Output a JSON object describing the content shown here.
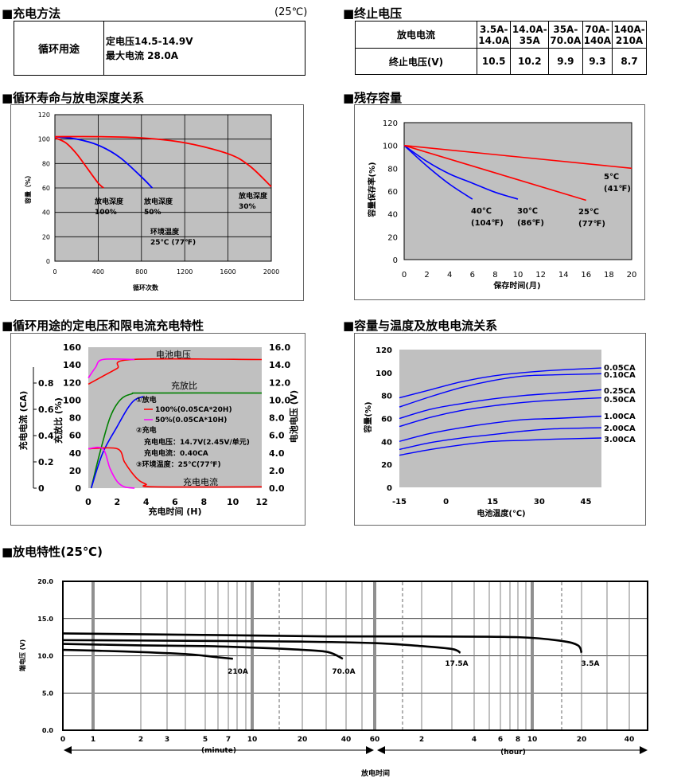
{
  "charging": {
    "title": "■充电方法",
    "unit": "(25℃)",
    "label": "循环用途",
    "line1": "定电压14.5-14.9V",
    "line2": "最大电流 28.0A"
  },
  "cutoff": {
    "title": "■终止电压",
    "row1_label": "放电电流",
    "row2_label": "终止电压(V)",
    "currents": [
      "3.5A-\n14.0A",
      "14.0A-\n35A",
      "35A-\n70.0A",
      "70A-\n140A",
      "140A-\n210A"
    ],
    "voltages": [
      "10.5",
      "10.2",
      "9.9",
      "9.3",
      "8.7"
    ]
  },
  "cycle_life": {
    "title": "■循环寿命与放电深度关系",
    "chart_data": {
      "type": "line",
      "xlabel": "循环次数",
      "ylabel": "容量（%）",
      "xlim": [
        0,
        2000
      ],
      "ylim": [
        0,
        120
      ],
      "xticks": [
        "0",
        "400",
        "800",
        "1200",
        "1600",
        "2000"
      ],
      "yticks": [
        "0",
        "20",
        "40",
        "60",
        "80",
        "100",
        "120"
      ],
      "grid": true,
      "series": [
        {
          "name": "放电深度 100%",
          "color": "#ff0000",
          "x": [
            0,
            100,
            200,
            300,
            400,
            450
          ],
          "y": [
            101,
            97,
            88,
            76,
            64,
            60
          ]
        },
        {
          "name": "放电深度 50%",
          "color": "#0000ff",
          "x": [
            0,
            200,
            400,
            600,
            800,
            900
          ],
          "y": [
            102,
            100,
            95,
            85,
            69,
            60
          ]
        },
        {
          "name": "放电深度 30%",
          "color": "#ff0000",
          "x": [
            0,
            400,
            800,
            1200,
            1600,
            1800,
            2000
          ],
          "y": [
            102,
            102,
            101,
            97,
            88,
            78,
            61
          ]
        }
      ],
      "annotations": {
        "d100": [
          "放电深度",
          "100%"
        ],
        "d50": [
          "放电深度",
          "50%"
        ],
        "d30": [
          "放电深度",
          "30%"
        ],
        "temp": [
          "环境温度",
          "25℃ (77℉)"
        ]
      }
    }
  },
  "residual": {
    "title": "■残存容量",
    "chart_data": {
      "type": "line",
      "xlabel": "保存时间(月)",
      "ylabel": "容量保存率(%)",
      "xlim": [
        0,
        20
      ],
      "ylim": [
        0,
        120
      ],
      "xticks": [
        "0",
        "2",
        "4",
        "6",
        "8",
        "10",
        "12",
        "14",
        "16",
        "18",
        "20"
      ],
      "yticks": [
        "0",
        "20",
        "40",
        "60",
        "80",
        "100",
        "120"
      ],
      "series": [
        {
          "name": "40℃ (104℉)",
          "color": "#0000ff",
          "x": [
            0,
            2,
            4,
            6
          ],
          "y": [
            100,
            82,
            66,
            53
          ]
        },
        {
          "name": "30℃ (86℉)",
          "color": "#0000ff",
          "x": [
            0,
            2,
            4,
            6,
            8,
            10
          ],
          "y": [
            100,
            86,
            75,
            67,
            59,
            53
          ]
        },
        {
          "name": "25℃ (77℉)",
          "color": "#ff0000",
          "x": [
            0,
            16
          ],
          "y": [
            100,
            52
          ]
        },
        {
          "name": "5℃ (41℉)",
          "color": "#ff0000",
          "x": [
            0,
            20
          ],
          "y": [
            100,
            80
          ]
        }
      ],
      "labels": {
        "t40": [
          "40℃",
          "(104℉)"
        ],
        "t30": [
          "30℃",
          "(86℉)"
        ],
        "t25": [
          "25℃",
          "(77℉)"
        ],
        "t5": [
          "5℃",
          "(41℉)"
        ]
      }
    }
  },
  "charge_char": {
    "title": "■循环用途的定电压和限电流充电特性",
    "chart_data": {
      "type": "line",
      "xlabel": "充电时间 (H)",
      "ylabel_left1": "充电电流 (CA)",
      "ylabel_left2": "充放比 (%)",
      "ylabel_right": "电池电压 (V)",
      "xlim": [
        0,
        12
      ],
      "ylim_pct": [
        0,
        160
      ],
      "ylim_ca": [
        0,
        0.8
      ],
      "ylim_v": [
        0,
        16
      ],
      "xticks": [
        "0",
        "2",
        "4",
        "6",
        "8",
        "10",
        "12"
      ],
      "yticks_pct": [
        "0",
        "20",
        "40",
        "60",
        "80",
        "100",
        "120",
        "140",
        "160"
      ],
      "yticks_ca": [
        "0",
        "0.2",
        "0.4",
        "0.6",
        "0.8"
      ],
      "yticks_v": [
        "0.0",
        "2.0",
        "4.0",
        "6.0",
        "8.0",
        "10.0",
        "12.0",
        "14.0",
        "16.0"
      ],
      "series": [
        {
          "name": "电池电压 100%",
          "color": "#ff0000",
          "axis": "v",
          "x": [
            0,
            1,
            2,
            3,
            12
          ],
          "y": [
            11.8,
            12.7,
            13.6,
            14.6,
            14.6
          ]
        },
        {
          "name": "电池电压 50%",
          "color": "#ff00ff",
          "axis": "v",
          "x": [
            0,
            0.5,
            1,
            3.2
          ],
          "y": [
            12.5,
            13.7,
            14.6,
            14.6
          ]
        },
        {
          "name": "充放比 100%",
          "color": "#008000",
          "axis": "pct",
          "x": [
            0.2,
            0.8,
            1.5,
            2.2,
            3.0,
            4.0,
            12
          ],
          "y": [
            0,
            40,
            80,
            100,
            107,
            108,
            108
          ]
        },
        {
          "name": "充放比 50%",
          "color": "#0000ff",
          "axis": "pct",
          "x": [
            0.2,
            1.0,
            2.0,
            2.7,
            3.2,
            3.8
          ],
          "y": [
            0,
            40,
            70,
            90,
            100,
            104
          ]
        },
        {
          "name": "充电电流 100%",
          "color": "#ff0000",
          "axis": "ca",
          "x": [
            0,
            2,
            2.5,
            3,
            3.5,
            4,
            4.5,
            12
          ],
          "y": [
            0.3,
            0.3,
            0.2,
            0.12,
            0.06,
            0.03,
            0.01,
            0.01
          ]
        },
        {
          "name": "充电电流 50%",
          "color": "#ff00ff",
          "axis": "ca",
          "x": [
            0,
            1,
            1.5,
            2,
            2.5,
            3.2
          ],
          "y": [
            0.3,
            0.3,
            0.15,
            0.05,
            0.01,
            0.0
          ]
        }
      ],
      "labels": {
        "voltage": "电池电压",
        "ratio": "充放比",
        "current": "充电电流",
        "legend_discharge": "①放电",
        "legend_100": "100%(0.05CA*20H)",
        "legend_50": "50%(0.05CA*10H)",
        "legend_charge": "②充电",
        "cv": "充电电压：14.7V(2.45V/单元)",
        "cc": "充电电流：0.40CA",
        "env": "③环境温度：25℃(77℉)"
      }
    }
  },
  "temp_cap": {
    "title": "■容量与温度及放电电流关系",
    "chart_data": {
      "type": "line",
      "xlabel": "电池温度(℃)",
      "ylabel": "容量(%)",
      "xlim": [
        -15,
        50
      ],
      "ylim": [
        0,
        120
      ],
      "xticks": [
        "-15",
        "0",
        "15",
        "30",
        "45"
      ],
      "yticks": [
        "0",
        "20",
        "40",
        "60",
        "80",
        "100",
        "120"
      ],
      "x": [
        -15,
        -5,
        5,
        15,
        25,
        35,
        50
      ],
      "series": [
        {
          "name": "0.05CA",
          "values": [
            78,
            85,
            92,
            97,
            100,
            102,
            104
          ]
        },
        {
          "name": "0.10CA",
          "values": [
            70,
            79,
            87,
            93,
            97,
            98,
            99
          ]
        },
        {
          "name": "0.25CA",
          "values": [
            60,
            68,
            73,
            77,
            80,
            82,
            85
          ]
        },
        {
          "name": "0.50CA",
          "values": [
            53,
            61,
            67,
            71,
            74,
            76,
            78
          ]
        },
        {
          "name": "1.00CA",
          "values": [
            40,
            47,
            52,
            56,
            59,
            60,
            62
          ]
        },
        {
          "name": "2.00CA",
          "values": [
            33,
            39,
            43,
            46,
            49,
            51,
            52
          ]
        },
        {
          "name": "3.00CA",
          "values": [
            28,
            33,
            37,
            40,
            41,
            42,
            43
          ]
        }
      ]
    }
  },
  "discharge": {
    "title": "■放电特性(25℃)",
    "chart_data": {
      "type": "line",
      "xlabel": "放电时间",
      "ylabel": "端电压 (V)",
      "ylim": [
        0,
        20
      ],
      "yticks": [
        "0.0",
        "5.0",
        "10.0",
        "15.0",
        "20.0"
      ],
      "minute_ticks": [
        "0",
        "1",
        "2",
        "3",
        "5",
        "7",
        "10",
        "20",
        "40",
        "60"
      ],
      "hour_ticks": [
        "2",
        "4",
        "6",
        "8",
        "10",
        "20",
        "40"
      ],
      "minute_label": "(minute)",
      "hour_label": "(hour)",
      "series": [
        {
          "name": "210A",
          "x_min": [
            0,
            1,
            2,
            4,
            6,
            7.5
          ],
          "y": [
            10.8,
            10.7,
            10.5,
            10.2,
            9.8,
            9.6
          ]
        },
        {
          "name": "70.0A",
          "x_min": [
            0,
            2,
            5,
            10,
            20,
            30,
            38
          ],
          "y": [
            11.6,
            11.4,
            11.3,
            11.1,
            10.8,
            10.5,
            9.6
          ]
        },
        {
          "name": "17.5A",
          "x_min": [
            0,
            5,
            20,
            60,
            120,
            180,
            200
          ],
          "y": [
            12.1,
            12.0,
            11.9,
            11.7,
            11.3,
            10.9,
            10.4
          ]
        },
        {
          "name": "3.5A",
          "x_min": [
            0,
            5,
            30,
            120,
            480,
            900,
            1140,
            1200
          ],
          "y": [
            13.0,
            12.8,
            12.6,
            12.6,
            12.5,
            12.0,
            11.4,
            10.4
          ]
        }
      ]
    }
  }
}
